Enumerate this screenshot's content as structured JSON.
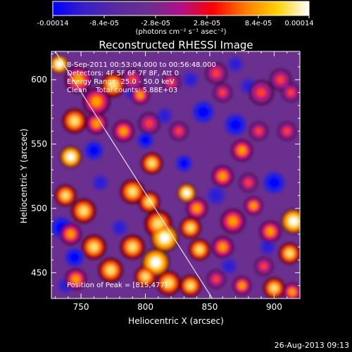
{
  "colors": {
    "background": "#000000",
    "text": "#ffffff",
    "colormap": [
      "#0000ff",
      "#3a20c8",
      "#5a2a9e",
      "#6b2f8f",
      "#b0108a",
      "#ff0000",
      "#ff7a00",
      "#ffd200",
      "#ffffff"
    ]
  },
  "colorbar": {
    "tick_labels": [
      "-0.00014",
      "-8.4e-05",
      "-2.8e-05",
      "2.8e-05",
      "8.4e-05",
      "0.00014"
    ],
    "units_label": "(photons cm⁻² s⁻¹ asec⁻²)",
    "range": [
      -0.00014,
      0.00014
    ]
  },
  "chart_data": {
    "type": "heatmap",
    "title": "Reconstructed RHESSI Image",
    "xlabel": "Heliocentric X (arcsec)",
    "ylabel": "Heliocentric Y (arcsec)",
    "xlim": [
      727,
      920
    ],
    "ylim": [
      430,
      622
    ],
    "x_ticks": [
      750,
      800,
      850,
      900
    ],
    "y_ticks": [
      450,
      500,
      550,
      600
    ],
    "annotations": [
      "8-Sep-2011 00:53:04.000 to 00:56:48.000",
      "Detectors: 4F 5F 6F 7F 8F, Att 0",
      "Energy Range: 25.0 - 50.0 keV",
      "Clean    Total counts: 5.88E+03"
    ],
    "peak_label": "Position of Peak = [815,477]",
    "peak": [
      815,
      477
    ],
    "limb_line": [
      [
        730,
        622
      ],
      [
        852,
        430
      ]
    ],
    "hot_spots": [
      [
        733,
        612,
        0.95,
        6
      ],
      [
        748,
        600,
        0.7,
        9
      ],
      [
        762,
        583,
        0.75,
        9
      ],
      [
        775,
        596,
        0.85,
        8
      ],
      [
        762,
        566,
        0.7,
        7
      ],
      [
        745,
        568,
        0.85,
        8
      ],
      [
        742,
        540,
        0.95,
        7
      ],
      [
        738,
        510,
        0.9,
        7
      ],
      [
        752,
        498,
        0.8,
        8
      ],
      [
        783,
        560,
        0.75,
        7
      ],
      [
        796,
        588,
        0.7,
        6
      ],
      [
        803,
        566,
        0.6,
        7
      ],
      [
        790,
        600,
        0.55,
        7
      ],
      [
        820,
        598,
        0.5,
        6
      ],
      [
        805,
        535,
        0.85,
        7
      ],
      [
        790,
        513,
        0.9,
        8
      ],
      [
        803,
        505,
        0.85,
        7
      ],
      [
        832,
        512,
        1.0,
        6
      ],
      [
        840,
        500,
        0.75,
        7
      ],
      [
        842,
        468,
        0.8,
        7
      ],
      [
        810,
        488,
        0.8,
        9
      ],
      [
        815,
        477,
        1.0,
        9
      ],
      [
        808,
        458,
        0.95,
        9
      ],
      [
        818,
        442,
        0.9,
        8
      ],
      [
        800,
        447,
        0.9,
        7
      ],
      [
        773,
        452,
        0.8,
        8
      ],
      [
        760,
        470,
        0.8,
        8
      ],
      [
        742,
        480,
        0.75,
        7
      ],
      [
        746,
        445,
        0.75,
        7
      ],
      [
        790,
        470,
        0.9,
        8
      ],
      [
        835,
        485,
        0.8,
        7
      ],
      [
        835,
        440,
        0.85,
        7
      ],
      [
        860,
        470,
        0.7,
        7
      ],
      [
        868,
        490,
        0.65,
        8
      ],
      [
        884,
        502,
        0.75,
        6
      ],
      [
        915,
        490,
        1.0,
        8
      ],
      [
        897,
        482,
        0.75,
        7
      ],
      [
        912,
        465,
        0.85,
        7
      ],
      [
        892,
        455,
        0.6,
        6
      ],
      [
        875,
        440,
        0.7,
        6
      ],
      [
        900,
        438,
        0.8,
        7
      ],
      [
        914,
        435,
        0.75,
        6
      ],
      [
        860,
        525,
        0.7,
        7
      ],
      [
        875,
        545,
        0.65,
        7
      ],
      [
        888,
        560,
        0.55,
        6
      ],
      [
        890,
        590,
        0.5,
        8
      ],
      [
        905,
        600,
        0.55,
        7
      ],
      [
        855,
        605,
        0.5,
        7
      ],
      [
        913,
        590,
        0.6,
        6
      ],
      [
        826,
        560,
        0.5,
        6
      ],
      [
        860,
        590,
        0.45,
        6
      ],
      [
        910,
        560,
        0.5,
        6
      ],
      [
        880,
        520,
        0.5,
        6
      ],
      [
        855,
        445,
        0.5,
        6
      ]
    ],
    "cold_spots": [
      [
        760,
        545,
        0.9,
        7
      ],
      [
        790,
        590,
        0.5,
        6
      ],
      [
        845,
        575,
        0.9,
        8
      ],
      [
        870,
        565,
        0.8,
        8
      ],
      [
        735,
        485,
        0.9,
        8
      ],
      [
        745,
        462,
        0.9,
        7
      ],
      [
        738,
        440,
        0.7,
        6
      ],
      [
        855,
        510,
        0.7,
        7
      ],
      [
        900,
        520,
        0.8,
        8
      ],
      [
        865,
        455,
        0.7,
        6
      ],
      [
        895,
        470,
        0.5,
        6
      ],
      [
        830,
        535,
        0.8,
        6
      ],
      [
        815,
        572,
        0.7,
        6
      ],
      [
        835,
        600,
        0.6,
        6
      ],
      [
        870,
        612,
        0.6,
        6
      ],
      [
        765,
        520,
        0.6,
        6
      ],
      [
        800,
        553,
        0.8,
        6
      ],
      [
        780,
        485,
        0.6,
        6
      ],
      [
        880,
        595,
        0.5,
        6
      ]
    ]
  },
  "footer": {
    "timestamp": "26-Aug-2013 09:13"
  }
}
